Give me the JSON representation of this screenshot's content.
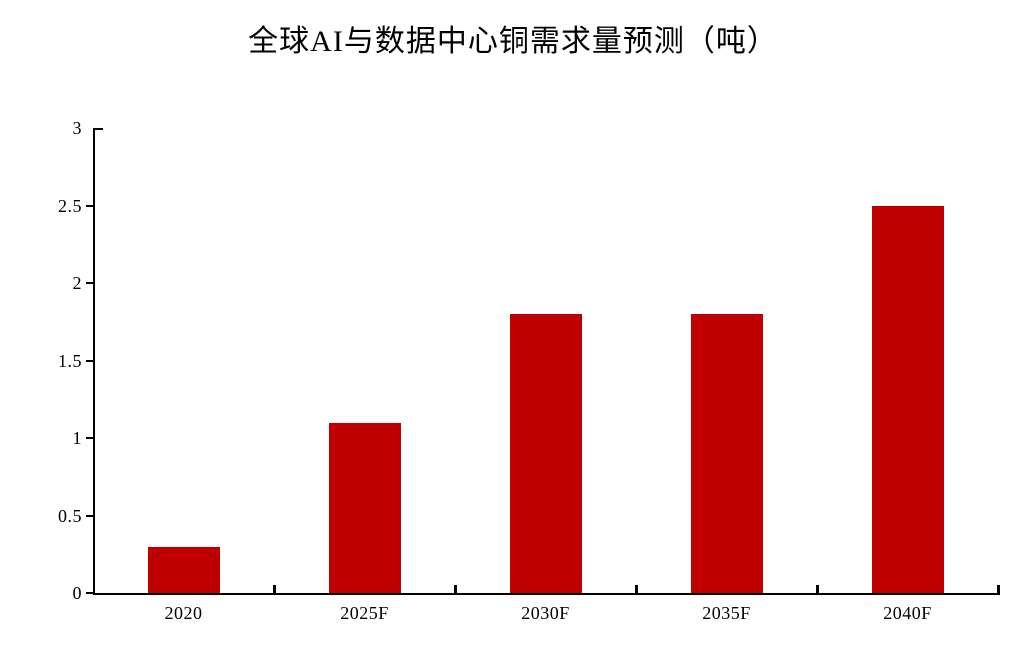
{
  "chart_data": {
    "type": "bar",
    "title": "全球AI与数据中心铜需求量预测（吨）",
    "categories": [
      "2020",
      "2025F",
      "2030F",
      "2035F",
      "2040F"
    ],
    "values": [
      0.3,
      1.1,
      1.8,
      1.8,
      2.5
    ],
    "xlabel": "",
    "ylabel": "",
    "ylim": [
      0,
      3
    ],
    "yticks": [
      0,
      0.5,
      1,
      1.5,
      2,
      2.5,
      3
    ],
    "ytick_labels": [
      "0",
      "0.5",
      "1",
      "1.5",
      "2",
      "2.5",
      "3"
    ],
    "grid": false,
    "legend": false,
    "bar_color": "#c00000",
    "axis_color": "#000000",
    "text_color": "#000000",
    "background_color": "#ffffff"
  }
}
